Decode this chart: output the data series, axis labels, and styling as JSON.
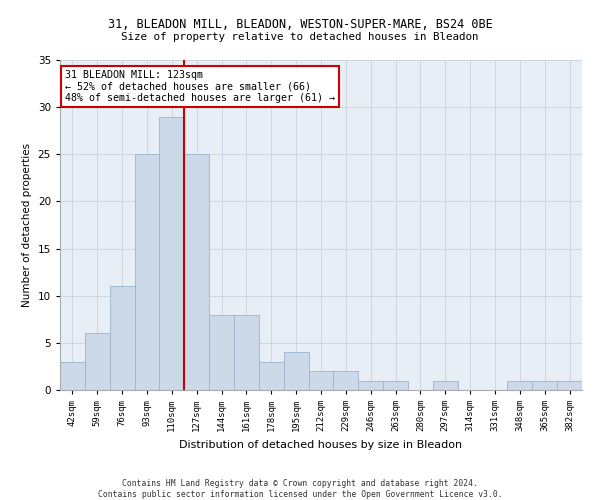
{
  "title1": "31, BLEADON MILL, BLEADON, WESTON-SUPER-MARE, BS24 0BE",
  "title2": "Size of property relative to detached houses in Bleadon",
  "xlabel": "Distribution of detached houses by size in Bleadon",
  "ylabel": "Number of detached properties",
  "bin_labels": [
    "42sqm",
    "59sqm",
    "76sqm",
    "93sqm",
    "110sqm",
    "127sqm",
    "144sqm",
    "161sqm",
    "178sqm",
    "195sqm",
    "212sqm",
    "229sqm",
    "246sqm",
    "263sqm",
    "280sqm",
    "297sqm",
    "314sqm",
    "331sqm",
    "348sqm",
    "365sqm",
    "382sqm"
  ],
  "bar_heights": [
    3,
    6,
    11,
    25,
    29,
    25,
    8,
    8,
    3,
    4,
    2,
    2,
    1,
    1,
    0,
    1,
    0,
    0,
    1,
    1,
    1
  ],
  "bar_color": "#ccd9e8",
  "bar_edgecolor": "#9ab4cc",
  "vline_color": "#cc0000",
  "vline_x_index": 4.5,
  "annotation_text": "31 BLEADON MILL: 123sqm\n← 52% of detached houses are smaller (66)\n48% of semi-detached houses are larger (61) →",
  "annotation_box_edgecolor": "#cc0000",
  "annotation_box_facecolor": "#ffffff",
  "ylim": [
    0,
    35
  ],
  "yticks": [
    0,
    5,
    10,
    15,
    20,
    25,
    30,
    35
  ],
  "grid_color": "#ccd5e0",
  "background_color": "#e8eef5",
  "footer1": "Contains HM Land Registry data © Crown copyright and database right 2024.",
  "footer2": "Contains public sector information licensed under the Open Government Licence v3.0."
}
